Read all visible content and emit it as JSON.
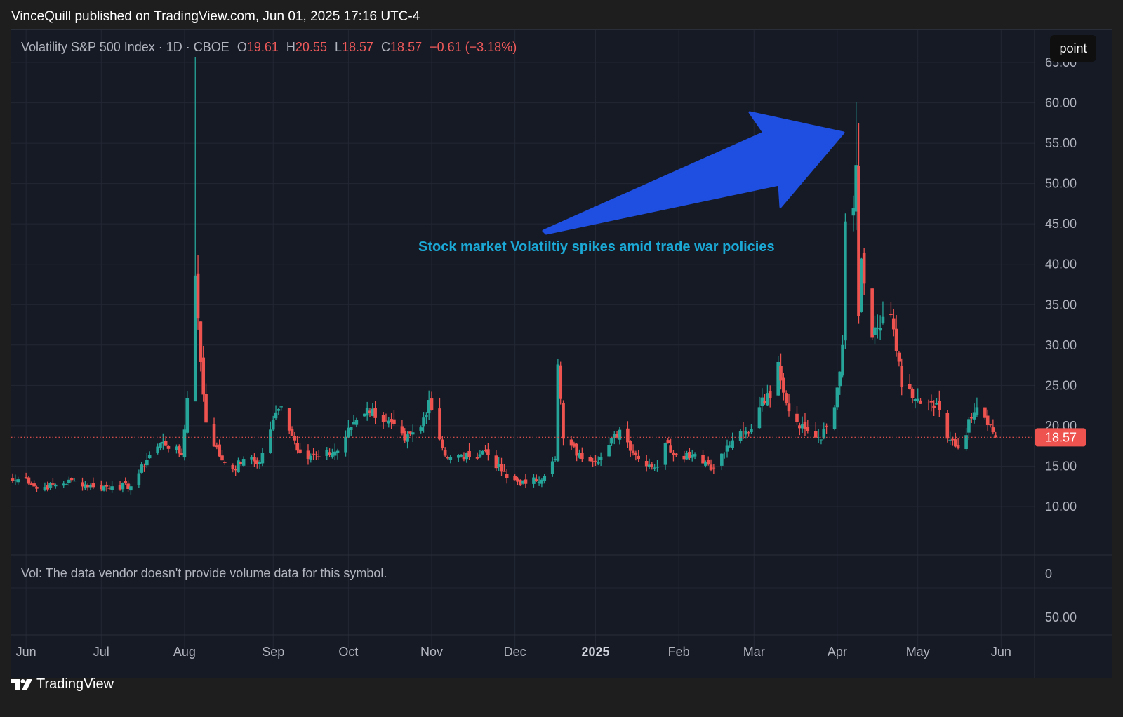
{
  "caption": "VinceQuill published on TradingView.com, Jun 01, 2025 17:16 UTC-4",
  "legend": {
    "symbol": "Volatility S&P 500 Index · 1D · CBOE",
    "open_label": "O",
    "open": "19.61",
    "high_label": "H",
    "high": "20.55",
    "low_label": "L",
    "low": "18.57",
    "close_label": "C",
    "close": "18.57",
    "change": "−0.61 (−3.18%)"
  },
  "mode_button": "point",
  "annotation": "Stock market Volatiltiy spikes amid trade war policies",
  "last_price_label": "18.57",
  "volume_note": "Vol: The data vendor doesn't provide volume data for this symbol.",
  "volume_axis_labels": [
    "0",
    "50.00"
  ],
  "brand": "TradingView",
  "colors": {
    "up": "#26a69a",
    "down": "#ef5350",
    "background": "#161a25",
    "annotation_text": "#1ba8d4",
    "arrow": "#1f4fe0",
    "price_line": "#ef5350"
  },
  "chart_data": {
    "type": "candlestick",
    "title": "",
    "y_ticks": [
      "10.00",
      "15.00",
      "20.00",
      "25.00",
      "30.00",
      "35.00",
      "40.00",
      "45.00",
      "50.00",
      "55.00",
      "60.00",
      "65.00"
    ],
    "ylim": [
      4,
      69
    ],
    "x_range": [
      "2025-05-31",
      "2025-06-03"
    ],
    "x_ticks": [
      {
        "label": "Jun",
        "date": "2024-06-03"
      },
      {
        "label": "Jul",
        "date": "2024-07-01"
      },
      {
        "label": "Aug",
        "date": "2024-08-01"
      },
      {
        "label": "Sep",
        "date": "2024-09-03"
      },
      {
        "label": "Oct",
        "date": "2024-10-01"
      },
      {
        "label": "Nov",
        "date": "2024-11-01"
      },
      {
        "label": "Dec",
        "date": "2024-12-02"
      },
      {
        "label": "2025",
        "date": "2025-01-01",
        "bold": true
      },
      {
        "label": "Feb",
        "date": "2025-02-01"
      },
      {
        "label": "Mar",
        "date": "2025-03-01"
      },
      {
        "label": "Apr",
        "date": "2025-04-01"
      },
      {
        "label": "May",
        "date": "2025-05-01"
      },
      {
        "label": "Jun",
        "date": "2025-06-01"
      }
    ],
    "last_price": 18.57,
    "annotation_date": "2025-04-08",
    "anchor_closes": [
      [
        "2024-05-29",
        13.2
      ],
      [
        "2024-06-03",
        13.5
      ],
      [
        "2024-06-07",
        12.2
      ],
      [
        "2024-06-14",
        12.7
      ],
      [
        "2024-06-21",
        13.2
      ],
      [
        "2024-06-28",
        12.4
      ],
      [
        "2024-07-05",
        12.5
      ],
      [
        "2024-07-12",
        12.5
      ],
      [
        "2024-07-19",
        16.4
      ],
      [
        "2024-07-24",
        18.0
      ],
      [
        "2024-07-31",
        16.4
      ],
      [
        "2024-08-02",
        23.4
      ],
      [
        "2024-08-05",
        38.6
      ],
      [
        "2024-08-07",
        27.9
      ],
      [
        "2024-08-09",
        20.4
      ],
      [
        "2024-08-14",
        16.2
      ],
      [
        "2024-08-19",
        14.6
      ],
      [
        "2024-08-23",
        15.9
      ],
      [
        "2024-08-29",
        15.5
      ],
      [
        "2024-09-03",
        20.7
      ],
      [
        "2024-09-06",
        22.4
      ],
      [
        "2024-09-13",
        16.6
      ],
      [
        "2024-09-20",
        16.2
      ],
      [
        "2024-09-27",
        16.9
      ],
      [
        "2024-10-03",
        20.5
      ],
      [
        "2024-10-08",
        22.2
      ],
      [
        "2024-10-15",
        20.6
      ],
      [
        "2024-10-22",
        18.2
      ],
      [
        "2024-10-28",
        19.8
      ],
      [
        "2024-10-31",
        23.2
      ],
      [
        "2024-11-01",
        21.9
      ],
      [
        "2024-11-06",
        16.3
      ],
      [
        "2024-11-15",
        16.1
      ],
      [
        "2024-11-21",
        16.9
      ],
      [
        "2024-11-29",
        13.5
      ],
      [
        "2024-12-06",
        12.8
      ],
      [
        "2024-12-13",
        13.8
      ],
      [
        "2024-12-17",
        15.9
      ],
      [
        "2024-12-18",
        27.6
      ],
      [
        "2024-12-20",
        18.4
      ],
      [
        "2024-12-27",
        15.9
      ],
      [
        "2025-01-03",
        16.1
      ],
      [
        "2025-01-10",
        19.5
      ],
      [
        "2025-01-17",
        15.9
      ],
      [
        "2025-01-24",
        14.9
      ],
      [
        "2025-01-27",
        17.9
      ],
      [
        "2025-01-31",
        16.4
      ],
      [
        "2025-02-07",
        16.5
      ],
      [
        "2025-02-14",
        14.8
      ],
      [
        "2025-02-21",
        18.2
      ],
      [
        "2025-02-28",
        19.6
      ],
      [
        "2025-03-04",
        23.5
      ],
      [
        "2025-03-07",
        23.4
      ],
      [
        "2025-03-10",
        27.9
      ],
      [
        "2025-03-14",
        21.8
      ],
      [
        "2025-03-21",
        19.3
      ],
      [
        "2025-03-26",
        18.3
      ],
      [
        "2025-03-31",
        22.3
      ],
      [
        "2025-04-03",
        30.0
      ],
      [
        "2025-04-04",
        45.3
      ],
      [
        "2025-04-07",
        47.0
      ],
      [
        "2025-04-08",
        52.3
      ],
      [
        "2025-04-09",
        33.6
      ],
      [
        "2025-04-10",
        40.7
      ],
      [
        "2025-04-11",
        37.6
      ],
      [
        "2025-04-14",
        30.9
      ],
      [
        "2025-04-21",
        33.8
      ],
      [
        "2025-04-25",
        24.8
      ],
      [
        "2025-05-02",
        22.7
      ],
      [
        "2025-05-09",
        21.9
      ],
      [
        "2025-05-12",
        18.4
      ],
      [
        "2025-05-16",
        17.2
      ],
      [
        "2025-05-21",
        20.9
      ],
      [
        "2025-05-23",
        22.3
      ],
      [
        "2025-05-29",
        19.2
      ],
      [
        "2025-05-30",
        18.57
      ]
    ]
  }
}
